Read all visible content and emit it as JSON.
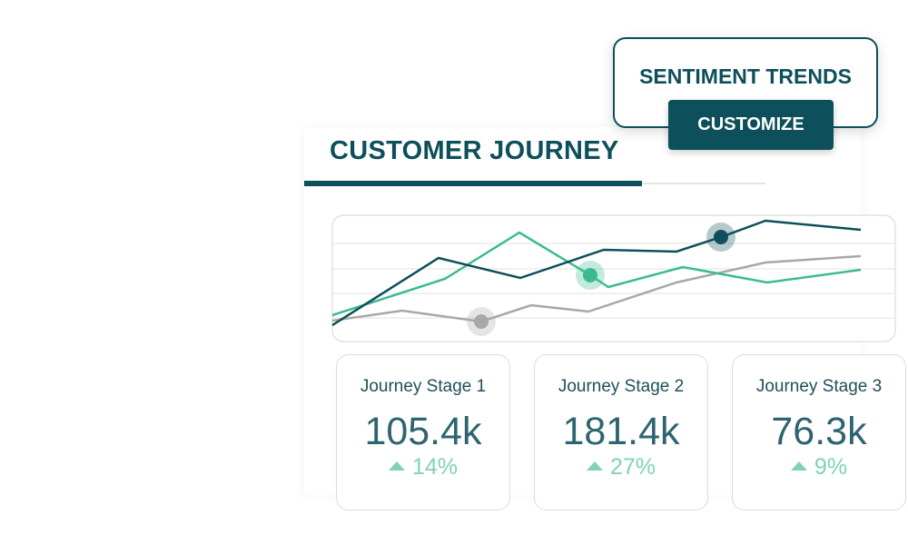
{
  "popup": {
    "title": "SENTIMENT TRENDS",
    "button": "CUSTOMIZE"
  },
  "panel": {
    "title": "CUSTOMER JOURNEY",
    "cards": [
      {
        "label": "Journey Stage 1",
        "value": "105.4k",
        "change": "14%"
      },
      {
        "label": "Journey Stage 2",
        "value": "181.4k",
        "change": "27%"
      },
      {
        "label": "Journey Stage 3",
        "value": "76.3k",
        "change": "9%"
      }
    ]
  }
}
